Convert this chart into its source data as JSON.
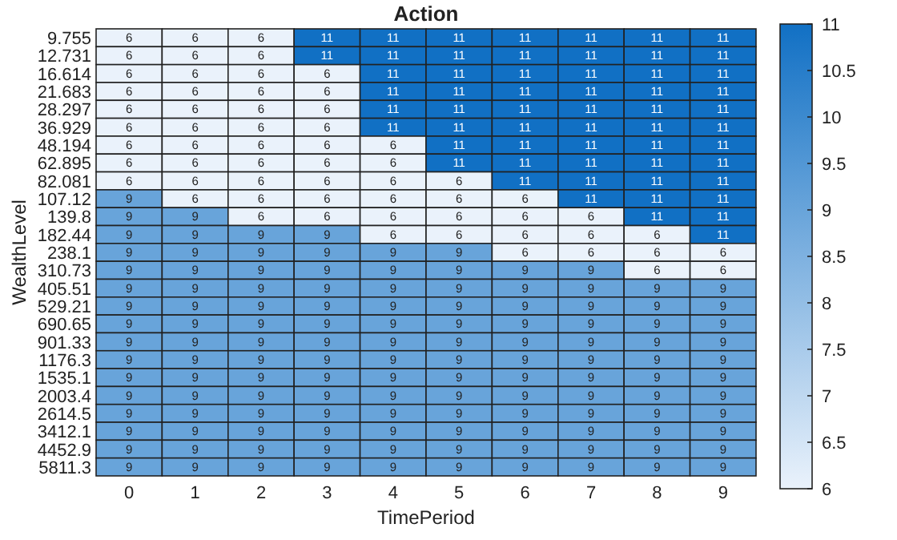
{
  "chart_data": {
    "type": "heatmap",
    "title": "Action",
    "xlabel": "TimePeriod",
    "ylabel": "WealthLevel",
    "categories": [
      "0",
      "1",
      "2",
      "3",
      "4",
      "5",
      "6",
      "7",
      "8",
      "9"
    ],
    "y_categories": [
      "9.755",
      "12.731",
      "16.614",
      "21.683",
      "28.297",
      "36.929",
      "48.194",
      "62.895",
      "82.081",
      "107.12",
      "139.8",
      "182.44",
      "238.1",
      "310.73",
      "405.51",
      "529.21",
      "690.65",
      "901.33",
      "1176.3",
      "1535.1",
      "2003.4",
      "2614.5",
      "3412.1",
      "4452.9",
      "5811.3"
    ],
    "cells": [
      [
        6,
        6,
        6,
        11,
        11,
        11,
        11,
        11,
        11,
        11
      ],
      [
        6,
        6,
        6,
        11,
        11,
        11,
        11,
        11,
        11,
        11
      ],
      [
        6,
        6,
        6,
        6,
        11,
        11,
        11,
        11,
        11,
        11
      ],
      [
        6,
        6,
        6,
        6,
        11,
        11,
        11,
        11,
        11,
        11
      ],
      [
        6,
        6,
        6,
        6,
        11,
        11,
        11,
        11,
        11,
        11
      ],
      [
        6,
        6,
        6,
        6,
        11,
        11,
        11,
        11,
        11,
        11
      ],
      [
        6,
        6,
        6,
        6,
        6,
        11,
        11,
        11,
        11,
        11
      ],
      [
        6,
        6,
        6,
        6,
        6,
        11,
        11,
        11,
        11,
        11
      ],
      [
        6,
        6,
        6,
        6,
        6,
        6,
        11,
        11,
        11,
        11
      ],
      [
        9,
        6,
        6,
        6,
        6,
        6,
        6,
        11,
        11,
        11
      ],
      [
        9,
        9,
        6,
        6,
        6,
        6,
        6,
        6,
        11,
        11
      ],
      [
        9,
        9,
        9,
        9,
        6,
        6,
        6,
        6,
        6,
        11
      ],
      [
        9,
        9,
        9,
        9,
        9,
        9,
        6,
        6,
        6,
        6
      ],
      [
        9,
        9,
        9,
        9,
        9,
        9,
        9,
        9,
        6,
        6
      ],
      [
        9,
        9,
        9,
        9,
        9,
        9,
        9,
        9,
        9,
        9
      ],
      [
        9,
        9,
        9,
        9,
        9,
        9,
        9,
        9,
        9,
        9
      ],
      [
        9,
        9,
        9,
        9,
        9,
        9,
        9,
        9,
        9,
        9
      ],
      [
        9,
        9,
        9,
        9,
        9,
        9,
        9,
        9,
        9,
        9
      ],
      [
        9,
        9,
        9,
        9,
        9,
        9,
        9,
        9,
        9,
        9
      ],
      [
        9,
        9,
        9,
        9,
        9,
        9,
        9,
        9,
        9,
        9
      ],
      [
        9,
        9,
        9,
        9,
        9,
        9,
        9,
        9,
        9,
        9
      ],
      [
        9,
        9,
        9,
        9,
        9,
        9,
        9,
        9,
        9,
        9
      ],
      [
        9,
        9,
        9,
        9,
        9,
        9,
        9,
        9,
        9,
        9
      ],
      [
        9,
        9,
        9,
        9,
        9,
        9,
        9,
        9,
        9,
        9
      ],
      [
        9,
        9,
        9,
        9,
        9,
        9,
        9,
        9,
        9,
        9
      ]
    ],
    "data_labels": true,
    "clim": [
      6,
      11
    ],
    "cticks": [
      6,
      6.5,
      7,
      7.5,
      8,
      8.5,
      9,
      9.5,
      10,
      10.5,
      11
    ]
  }
}
